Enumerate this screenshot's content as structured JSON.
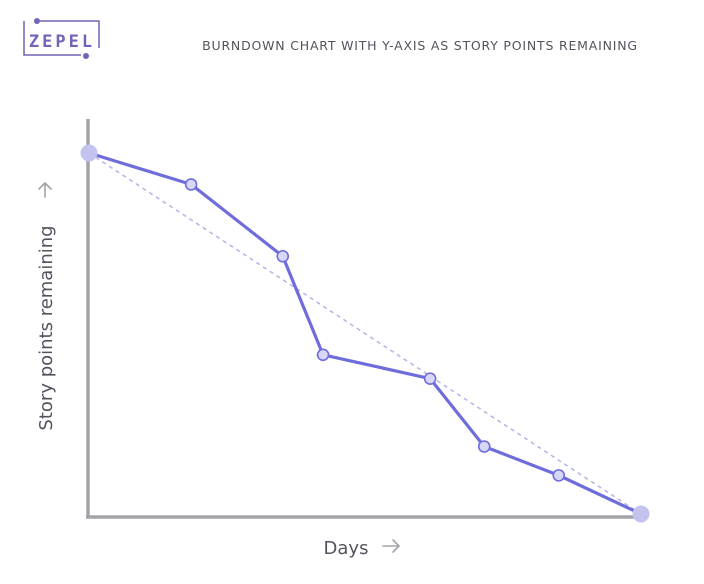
{
  "logo": {
    "text": "ZEPEL"
  },
  "chart_data": {
    "type": "line",
    "title": "BURNDOWN CHART WITH Y-AXIS AS STORY POINTS REMAINING",
    "xlabel": "Days",
    "ylabel": "Story points remaining",
    "xlim": [
      0,
      100
    ],
    "ylim": [
      0,
      100
    ],
    "grid": false,
    "series": [
      {
        "kind": "actual",
        "x": [
          0,
          18.5,
          35.1,
          42.4,
          61.8,
          71.6,
          85.1,
          100
        ],
        "y": [
          100,
          91.3,
          71.4,
          44.1,
          37.5,
          18.7,
          10.7,
          0
        ]
      },
      {
        "kind": "ideal",
        "x": [
          0,
          100
        ],
        "y": [
          100,
          0
        ]
      }
    ],
    "colors": {
      "actual": "#6f6cdc",
      "ideal": "#b4b2e8",
      "point_fill": "#d8d7f5",
      "endpoint_fill": "#c4c2ee",
      "axis": "#a4a3aa",
      "text": "#53535e",
      "logo": "#7064b8"
    }
  }
}
